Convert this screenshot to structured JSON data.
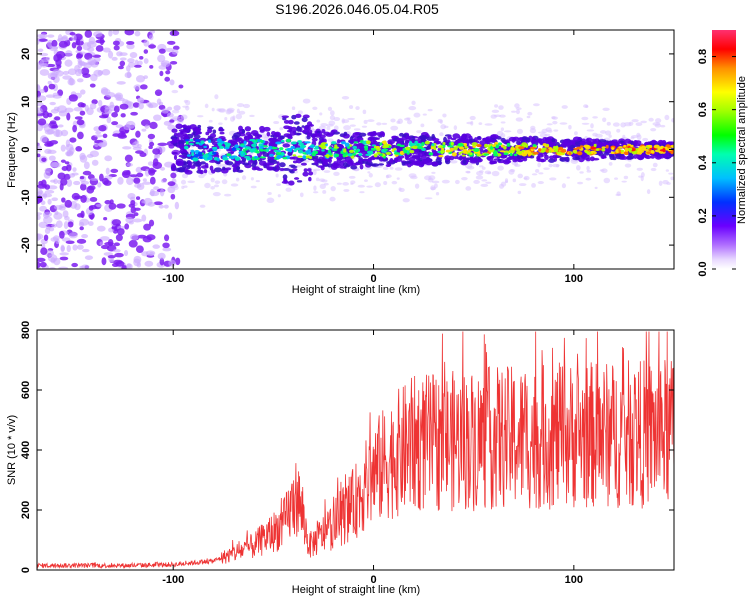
{
  "title": "S196.2026.046.05.04.R05",
  "colors": {
    "snr_line": "#ee3333",
    "blob_dim": "#7a1ce8",
    "blob_bright": "#5a00e0"
  },
  "chart_data": [
    {
      "type": "heatmap",
      "xlabel": "Height of straight line (km)",
      "ylabel": "Frequency (Hz)",
      "xlim": [
        -168,
        150
      ],
      "ylim": [
        -25,
        25
      ],
      "xticks": [
        -100,
        0,
        100
      ],
      "yticks": [
        -20,
        -10,
        0,
        10,
        20
      ],
      "colorbar": {
        "label": "Normalized spectral amplitude",
        "range": [
          0,
          0.9
        ],
        "ticks": [
          0.0,
          0.2,
          0.4,
          0.6,
          0.8
        ]
      },
      "signal_band": {
        "noise_region_x": [
          -168,
          -100
        ],
        "band_center_hz": 0,
        "band_halfwidth_hz_at_start": 5,
        "band_halfwidth_hz_at_end": 1.5
      }
    },
    {
      "type": "line",
      "xlabel": "Height of straight line (km)",
      "ylabel": "SNR (10 * v/v)",
      "xlim": [
        -168,
        150
      ],
      "ylim": [
        0,
        800
      ],
      "xticks": [
        -100,
        0,
        100
      ],
      "yticks": [
        0,
        200,
        400,
        600,
        800
      ],
      "series": [
        {
          "envelope": {
            "x": [
              -168,
              -120,
              -100,
              -80,
              -60,
              -45,
              -38,
              -32,
              -20,
              -10,
              0,
              10,
              20,
              40,
              60,
              80,
              100,
              120,
              150
            ],
            "y": [
              15,
              15,
              18,
              30,
              80,
              150,
              250,
              80,
              150,
              220,
              320,
              380,
              420,
              430,
              440,
              440,
              450,
              450,
              460
            ]
          }
        }
      ]
    }
  ]
}
